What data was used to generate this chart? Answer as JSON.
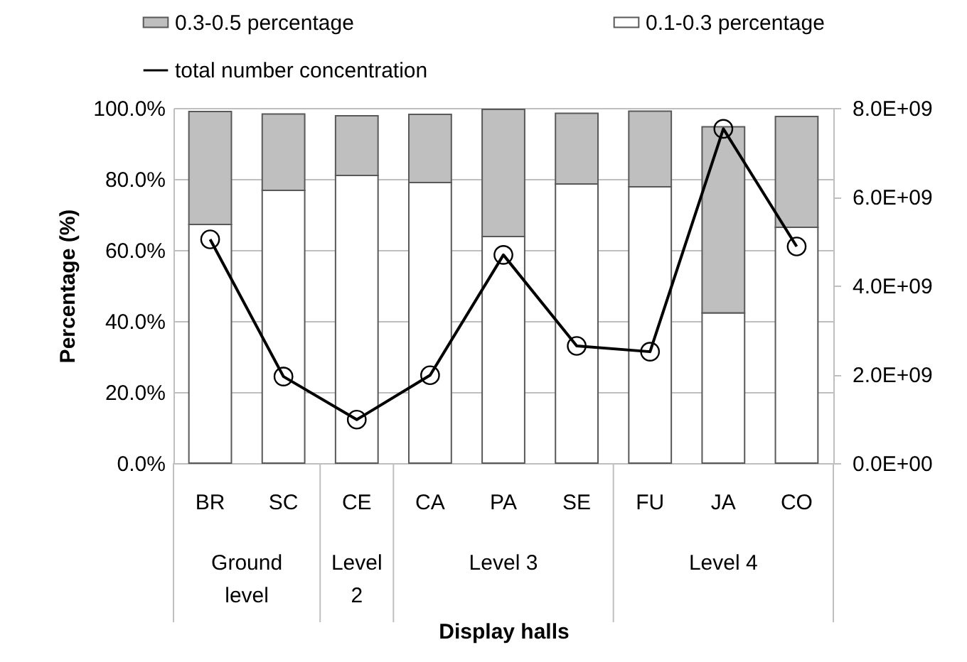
{
  "chart_data": {
    "type": "bar",
    "stacked": true,
    "categories": [
      "BR",
      "SC",
      "CE",
      "CA",
      "PA",
      "SE",
      "FU",
      "JA",
      "CO"
    ],
    "xlabel": "Display halls",
    "ylabel": "Percentage (%)",
    "series": [
      {
        "name": "0.1-0.3 percentage",
        "color": "#ffffff",
        "values": [
          67.2,
          76.8,
          81.0,
          79.0,
          63.8,
          78.6,
          77.8,
          42.3,
          66.4
        ]
      },
      {
        "name": "0.3-0.5 percentage",
        "color": "#bfbfbf",
        "values": [
          31.8,
          21.5,
          16.8,
          19.2,
          35.8,
          19.9,
          21.3,
          52.4,
          31.2
        ]
      },
      {
        "name": "total number concentration",
        "type": "line",
        "axis": "y2",
        "color": "#000000",
        "marker": "circle",
        "values": [
          5040000000,
          1950000000,
          980000000,
          1980000000,
          4690000000,
          2640000000,
          2510000000,
          7530000000,
          4880000000
        ]
      }
    ],
    "ylim": [
      0,
      100
    ],
    "yticks": [
      {
        "value": 0,
        "label": "0.0%"
      },
      {
        "value": 20,
        "label": "20.0%"
      },
      {
        "value": 40,
        "label": "40.0%"
      },
      {
        "value": 60,
        "label": "60.0%"
      },
      {
        "value": 80,
        "label": "80.0%"
      },
      {
        "value": 100,
        "label": "100.0%"
      }
    ],
    "y2lim": [
      0,
      8000000000
    ],
    "y2ticks": [
      {
        "value": 0,
        "label": "0.0E+00"
      },
      {
        "value": 2000000000,
        "label": "2.0E+09"
      },
      {
        "value": 4000000000,
        "label": "4.0E+09"
      },
      {
        "value": 6000000000,
        "label": "6.0E+09"
      },
      {
        "value": 8000000000,
        "label": "8.0E+09"
      }
    ],
    "grid": "y",
    "legend": "top",
    "annotations": [
      "Ground level",
      "Level 2",
      "Level 3",
      "Level 4"
    ]
  }
}
